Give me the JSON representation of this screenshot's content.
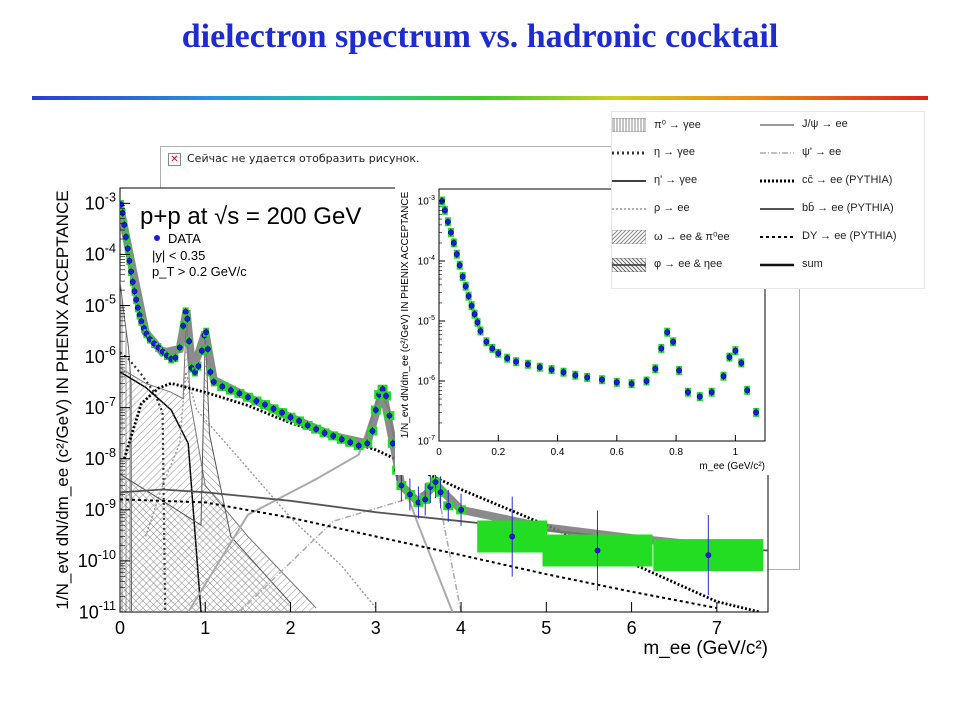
{
  "slide": {
    "title": "dielectron spectrum vs. hadronic cocktail",
    "broken_image_text": "Сейчас не удается отобразить рисунок."
  },
  "chart_data": [
    {
      "type": "scatter",
      "panel": "main",
      "title": "p+p at √s = 200 GeV",
      "annotations": [
        "DATA",
        "|y| < 0.35",
        "p_T > 0.2 GeV/c"
      ],
      "xlabel": "m_ee (GeV/c²)",
      "ylabel": "1/N_evt dN/dm_ee (c²/GeV) IN PHENIX ACCEPTANCE",
      "xlim": [
        0,
        7.6
      ],
      "ylim_log10": [
        -11,
        -2.7
      ],
      "log_y": true,
      "x_ticks": [
        0,
        1,
        2,
        3,
        4,
        5,
        6,
        7
      ],
      "y_tick_exponents": [
        -3,
        -4,
        -5,
        -6,
        -7,
        -8,
        -9,
        -10,
        -11
      ],
      "data_points": [
        [
          0.01,
          0.00095
        ],
        [
          0.03,
          0.00065
        ],
        [
          0.05,
          0.00038
        ],
        [
          0.07,
          0.00022
        ],
        [
          0.09,
          0.00013
        ],
        [
          0.11,
          7.5e-05
        ],
        [
          0.13,
          4.6e-05
        ],
        [
          0.15,
          2.9e-05
        ],
        [
          0.17,
          1.9e-05
        ],
        [
          0.19,
          1.3e-05
        ],
        [
          0.21,
          9e-06
        ],
        [
          0.23,
          6.5e-06
        ],
        [
          0.25,
          4.9e-06
        ],
        [
          0.28,
          3.6e-06
        ],
        [
          0.31,
          2.8e-06
        ],
        [
          0.35,
          2.2e-06
        ],
        [
          0.4,
          1.8e-06
        ],
        [
          0.45,
          1.5e-06
        ],
        [
          0.5,
          1.25e-06
        ],
        [
          0.55,
          1.05e-06
        ],
        [
          0.6,
          9e-07
        ],
        [
          0.65,
          9.5e-07
        ],
        [
          0.7,
          1.5e-06
        ],
        [
          0.74,
          4e-06
        ],
        [
          0.77,
          7.5e-06
        ],
        [
          0.79,
          5.5e-06
        ],
        [
          0.81,
          2e-06
        ],
        [
          0.84,
          6e-07
        ],
        [
          0.88,
          5e-07
        ],
        [
          0.92,
          6.5e-07
        ],
        [
          0.96,
          1.3e-06
        ],
        [
          0.99,
          2.6e-06
        ],
        [
          1.01,
          3e-06
        ],
        [
          1.03,
          1.4e-06
        ],
        [
          1.06,
          5e-07
        ],
        [
          1.1,
          3.2e-07
        ],
        [
          1.2,
          2.6e-07
        ],
        [
          1.3,
          2.2e-07
        ],
        [
          1.4,
          1.9e-07
        ],
        [
          1.5,
          1.6e-07
        ],
        [
          1.6,
          1.35e-07
        ],
        [
          1.7,
          1.15e-07
        ],
        [
          1.8,
          9.5e-08
        ],
        [
          1.9,
          8e-08
        ],
        [
          2.0,
          6.5e-08
        ],
        [
          2.1,
          5.5e-08
        ],
        [
          2.2,
          4.5e-08
        ],
        [
          2.3,
          3.8e-08
        ],
        [
          2.4,
          3.2e-08
        ],
        [
          2.5,
          2.8e-08
        ],
        [
          2.6,
          2.4e-08
        ],
        [
          2.7,
          2.1e-08
        ],
        [
          2.8,
          1.8e-08
        ],
        [
          2.9,
          2e-08
        ],
        [
          2.96,
          3.5e-08
        ],
        [
          3.0,
          9e-08
        ],
        [
          3.04,
          1.8e-07
        ],
        [
          3.08,
          2.3e-07
        ],
        [
          3.12,
          1.7e-07
        ],
        [
          3.16,
          7e-08
        ],
        [
          3.2,
          2e-08
        ],
        [
          3.25,
          6e-09
        ],
        [
          3.3,
          3e-09
        ],
        [
          3.4,
          2e-09
        ],
        [
          3.5,
          1.4e-09
        ],
        [
          3.58,
          1.6e-09
        ],
        [
          3.64,
          2.8e-09
        ],
        [
          3.7,
          3.5e-09
        ],
        [
          3.76,
          2.2e-09
        ],
        [
          3.85,
          1.2e-09
        ],
        [
          4.0,
          1e-09
        ],
        [
          4.6,
          3e-10
        ],
        [
          5.6,
          1.6e-10
        ],
        [
          6.9,
          1.3e-10
        ]
      ],
      "curves": [
        {
          "name": "π⁰ → γee",
          "points": [
            [
              0.0,
              3e-05
            ],
            [
              0.05,
              6e-06
            ],
            [
              0.1,
              1.5e-06
            ],
            [
              0.13,
              3e-07
            ],
            [
              0.135,
              1e-11
            ]
          ]
        },
        {
          "name": "η → γee",
          "points": [
            [
              0.0,
              1.2e-06
            ],
            [
              0.1,
              9e-07
            ],
            [
              0.25,
              4.5e-07
            ],
            [
              0.4,
              2e-07
            ],
            [
              0.5,
              8e-08
            ],
            [
              0.53,
              1e-11
            ]
          ]
        },
        {
          "name": "η' → γee",
          "points": [
            [
              0.0,
              5e-07
            ],
            [
              0.3,
              2.5e-07
            ],
            [
              0.6,
              9e-08
            ],
            [
              0.8,
              2e-08
            ],
            [
              0.95,
              1e-11
            ]
          ]
        },
        {
          "name": "ρ → ee",
          "points": [
            [
              0.3,
              3e-10
            ],
            [
              0.5,
              3e-09
            ],
            [
              0.7,
              2e-08
            ],
            [
              0.77,
              5e-07
            ],
            [
              0.9,
              9e-08
            ],
            [
              1.4,
              1e-08
            ],
            [
              2.0,
              7e-10
            ],
            [
              2.6,
              8e-11
            ],
            [
              3.0,
              1.2e-11
            ]
          ]
        },
        {
          "name": "ω → ee & π⁰ee",
          "points": [
            [
              0.0,
              6e-07
            ],
            [
              0.3,
              3e-07
            ],
            [
              0.6,
              2e-07
            ],
            [
              0.74,
              1.5e-07
            ],
            [
              0.78,
              7e-06
            ],
            [
              0.82,
              1.5e-07
            ],
            [
              1.0,
              3e-09
            ],
            [
              1.5,
              3e-10
            ],
            [
              2.3,
              1.2e-11
            ]
          ]
        },
        {
          "name": "φ → ee & ηee",
          "points": [
            [
              0.0,
              5e-09
            ],
            [
              0.5,
              1.5e-09
            ],
            [
              0.95,
              5e-10
            ],
            [
              1.0,
              3e-06
            ],
            [
              1.05,
              3e-08
            ],
            [
              1.3,
              3e-10
            ],
            [
              2.0,
              1.5e-11
            ]
          ]
        },
        {
          "name": "J/ψ → ee",
          "points": [
            [
              0.8,
              1e-11
            ],
            [
              1.5,
              8e-10
            ],
            [
              2.3,
              4e-09
            ],
            [
              2.8,
              1.2e-08
            ],
            [
              3.05,
              2e-07
            ],
            [
              3.15,
              1e-07
            ],
            [
              3.3,
              4e-09
            ],
            [
              3.5,
              5e-10
            ],
            [
              3.9,
              1e-11
            ]
          ]
        },
        {
          "name": "ψ' → ee",
          "points": [
            [
              1.4,
              1e-11
            ],
            [
              2.5,
              6e-10
            ],
            [
              3.3,
              1.5e-09
            ],
            [
              3.65,
              2.5e-09
            ],
            [
              3.72,
              3e-09
            ],
            [
              3.8,
              5e-10
            ],
            [
              4.0,
              1e-11
            ]
          ]
        },
        {
          "name": "cc̄ → ee (PYTHIA)",
          "points": [
            [
              0.05,
              1e-08
            ],
            [
              0.25,
              1.2e-07
            ],
            [
              0.45,
              2.4e-07
            ],
            [
              0.6,
              3e-07
            ],
            [
              1.0,
              2e-07
            ],
            [
              1.5,
              1.1e-07
            ],
            [
              2.0,
              5e-08
            ],
            [
              3.0,
              1.5e-08
            ],
            [
              4.0,
              2.5e-09
            ],
            [
              5.0,
              5e-10
            ],
            [
              6.0,
              9e-11
            ],
            [
              7.0,
              1.6e-11
            ],
            [
              7.5,
              1e-11
            ]
          ]
        },
        {
          "name": "bb̄ → ee (PYTHIA)",
          "points": [
            [
              0.0,
              2.2e-09
            ],
            [
              0.5,
              2.5e-09
            ],
            [
              1.0,
              2.2e-09
            ],
            [
              2.0,
              1.5e-09
            ],
            [
              3.0,
              9e-10
            ],
            [
              4.0,
              6e-10
            ],
            [
              5.0,
              4e-10
            ],
            [
              6.0,
              2.7e-10
            ],
            [
              7.0,
              1.8e-10
            ],
            [
              7.6,
              1.6e-10
            ]
          ]
        },
        {
          "name": "DY → ee (PYTHIA)",
          "points": [
            [
              0.0,
              1.6e-09
            ],
            [
              1.0,
              1.4e-09
            ],
            [
              2.0,
              7e-10
            ],
            [
              3.0,
              3e-10
            ],
            [
              4.0,
              1.3e-10
            ],
            [
              5.0,
              5.5e-11
            ],
            [
              6.0,
              2.5e-11
            ],
            [
              7.0,
              1.2e-11
            ]
          ]
        },
        {
          "name": "sum",
          "points": [
            [
              0.0,
              0.0009
            ],
            [
              0.1,
              0.00013
            ],
            [
              0.3,
              3e-06
            ],
            [
              0.5,
              1.2e-06
            ],
            [
              0.7,
              1.4e-06
            ],
            [
              0.78,
              8e-06
            ],
            [
              0.85,
              5e-07
            ],
            [
              1.0,
              3e-06
            ],
            [
              1.1,
              3.5e-07
            ],
            [
              1.5,
              1.6e-07
            ],
            [
              2.0,
              6.5e-08
            ],
            [
              2.5,
              2.8e-08
            ],
            [
              2.9,
              2e-08
            ],
            [
              3.08,
              2.2e-07
            ],
            [
              3.3,
              3e-09
            ],
            [
              3.5,
              1.4e-09
            ],
            [
              3.7,
              3.2e-09
            ],
            [
              4.0,
              1e-09
            ],
            [
              5.0,
              4.5e-10
            ],
            [
              6.0,
              2.8e-10
            ],
            [
              7.0,
              1.9e-10
            ]
          ]
        }
      ]
    },
    {
      "type": "scatter",
      "panel": "inset",
      "xlabel": "m_ee (GeV/c²)",
      "ylabel": "1/N_evt dN/dm_ee (c²/GeV) IN PHENIX ACCEPTANCE",
      "xlim": [
        0,
        1.1
      ],
      "ylim_log10": [
        -7,
        -2.8
      ],
      "log_y": true,
      "x_ticks": [
        0,
        0.2,
        0.4,
        0.6,
        0.8,
        1
      ],
      "y_tick_exponents": [
        -3,
        -4,
        -5,
        -6,
        -7
      ],
      "data_points": [
        [
          0.01,
          0.001
        ],
        [
          0.02,
          0.0007
        ],
        [
          0.03,
          0.00045
        ],
        [
          0.04,
          0.0003
        ],
        [
          0.05,
          0.0002
        ],
        [
          0.06,
          0.00013
        ],
        [
          0.07,
          8.5e-05
        ],
        [
          0.08,
          5.5e-05
        ],
        [
          0.09,
          3.8e-05
        ],
        [
          0.1,
          2.6e-05
        ],
        [
          0.11,
          1.8e-05
        ],
        [
          0.12,
          1.3e-05
        ],
        [
          0.13,
          9.5e-06
        ],
        [
          0.14,
          6.8e-06
        ],
        [
          0.16,
          4.5e-06
        ],
        [
          0.18,
          3.5e-06
        ],
        [
          0.2,
          2.9e-06
        ],
        [
          0.23,
          2.4e-06
        ],
        [
          0.26,
          2.1e-06
        ],
        [
          0.3,
          1.9e-06
        ],
        [
          0.34,
          1.7e-06
        ],
        [
          0.38,
          1.55e-06
        ],
        [
          0.42,
          1.4e-06
        ],
        [
          0.46,
          1.25e-06
        ],
        [
          0.5,
          1.15e-06
        ],
        [
          0.55,
          1.05e-06
        ],
        [
          0.6,
          9.5e-07
        ],
        [
          0.65,
          9e-07
        ],
        [
          0.7,
          1e-06
        ],
        [
          0.73,
          1.6e-06
        ],
        [
          0.75,
          3.5e-06
        ],
        [
          0.77,
          6.5e-06
        ],
        [
          0.79,
          4.5e-06
        ],
        [
          0.81,
          1.5e-06
        ],
        [
          0.84,
          6.5e-07
        ],
        [
          0.88,
          5.5e-07
        ],
        [
          0.92,
          6.5e-07
        ],
        [
          0.96,
          1.2e-06
        ],
        [
          0.98,
          2.5e-06
        ],
        [
          1.0,
          3.2e-06
        ],
        [
          1.02,
          2e-06
        ],
        [
          1.04,
          7e-07
        ],
        [
          1.07,
          3e-07
        ]
      ]
    }
  ],
  "legend": [
    {
      "label": "π⁰ → γee",
      "style": "hatch-vertical"
    },
    {
      "label": "η → γee",
      "style": "dotted-heavy"
    },
    {
      "label": "η' → γee",
      "style": "solid"
    },
    {
      "label": "ρ → ee",
      "style": "dotted-gray"
    },
    {
      "label": "ω → ee & π⁰ee",
      "style": "hatch-diagonal"
    },
    {
      "label": "φ → ee & ηee",
      "style": "hatch-cross"
    },
    {
      "label": "J/ψ → ee",
      "style": "solid-gray"
    },
    {
      "label": "ψ' → ee",
      "style": "dashdot-gray"
    },
    {
      "label": "cc̄ → ee (PYTHIA)",
      "style": "dotted-bold"
    },
    {
      "label": "bb̄ → ee (PYTHIA)",
      "style": "solid-dark"
    },
    {
      "label": "DY → ee (PYTHIA)",
      "style": "dashed"
    },
    {
      "label": "sum",
      "style": "solid-bold"
    }
  ]
}
